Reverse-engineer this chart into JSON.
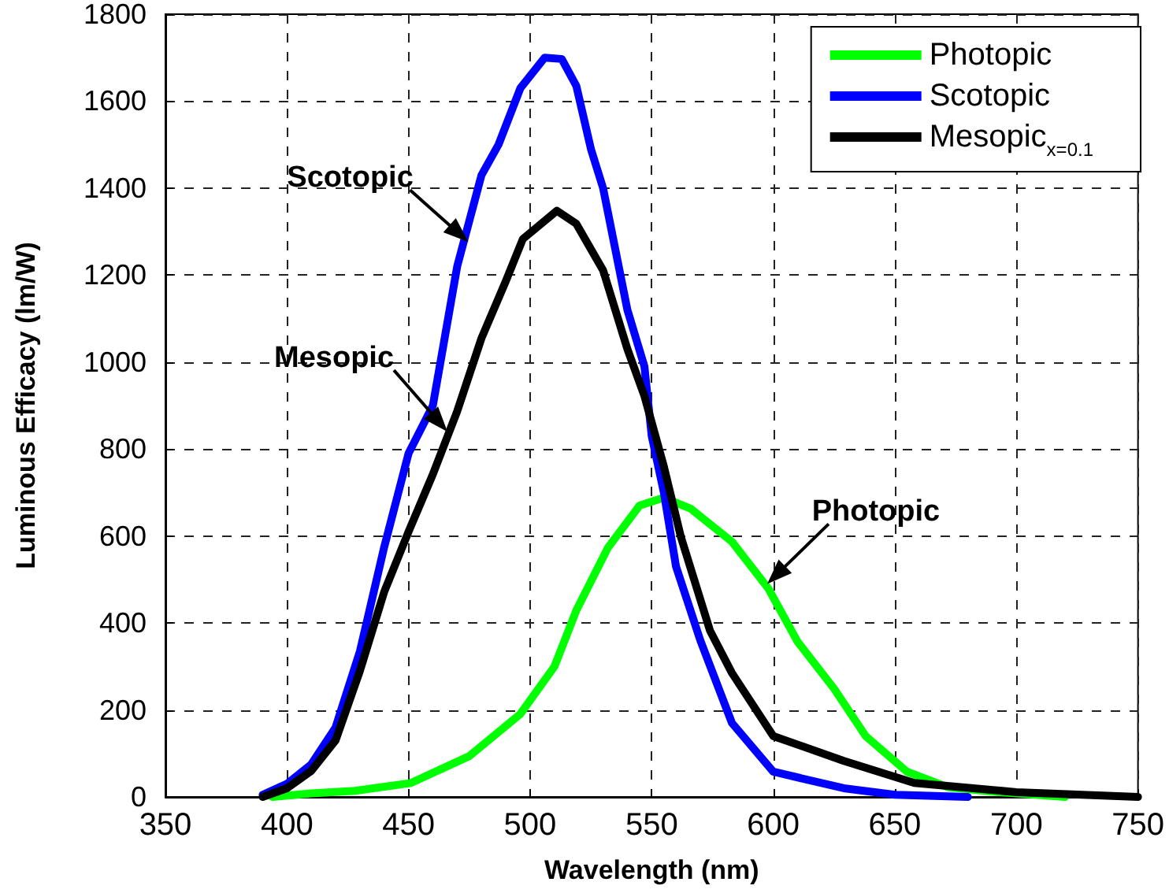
{
  "chart_data": {
    "type": "line",
    "xlabel": "Wavelength (nm)",
    "ylabel": "Luminous Efficacy (lm/W)",
    "xlim": [
      350,
      750
    ],
    "xticks": [
      350,
      400,
      450,
      500,
      550,
      600,
      650,
      700,
      750
    ],
    "ylim": [
      0,
      1800
    ],
    "yticks": [
      0,
      200,
      400,
      600,
      800,
      1000,
      1200,
      1400,
      1600,
      1800
    ],
    "grid": true,
    "legend": "top right",
    "marker": "none",
    "series": [
      {
        "name": "Photopic",
        "color": "#00ff00",
        "x": [
          394,
          410,
          428,
          451,
          475,
          496,
          510,
          519,
          532,
          545,
          555,
          566,
          583,
          598,
          610,
          625,
          638,
          655,
          672,
          693,
          720
        ],
        "values": [
          0,
          8,
          14,
          32,
          94,
          191,
          300,
          429,
          573,
          670,
          688,
          663,
          587,
          479,
          357,
          249,
          140,
          58,
          22,
          11,
          0
        ]
      },
      {
        "name": "Scotopic",
        "color": "#0000ff",
        "x": [
          390,
          400,
          410,
          420,
          430,
          440,
          450,
          460,
          465,
          470,
          480,
          487,
          496,
          506,
          513,
          519,
          525,
          530,
          540,
          547,
          550,
          555,
          560,
          570,
          583,
          600,
          629,
          650,
          680
        ],
        "values": [
          5,
          30,
          75,
          160,
          335,
          575,
          790,
          900,
          1060,
          1220,
          1430,
          1500,
          1630,
          1700,
          1697,
          1635,
          1490,
          1400,
          1120,
          990,
          830,
          700,
          530,
          360,
          170,
          58,
          20,
          5,
          0
        ]
      },
      {
        "name": "Mesopic$_{x=0.1}$",
        "color": "#000000",
        "x": [
          390,
          400,
          410,
          420,
          430,
          440,
          450,
          460,
          470,
          480,
          490,
          497,
          511,
          519,
          530,
          540,
          547,
          555,
          562,
          574,
          583,
          600,
          629,
          658,
          700,
          750
        ],
        "values": [
          0,
          20,
          60,
          130,
          290,
          472,
          610,
          742,
          887,
          1055,
          1186,
          1283,
          1348,
          1318,
          1211,
          1030,
          922,
          760,
          598,
          382,
          285,
          140,
          83,
          32,
          11,
          0
        ]
      }
    ],
    "annotations": [
      {
        "text": "Scotopic",
        "x": 474.6,
        "y": 1276
      },
      {
        "text": "Mesopic",
        "x": 466,
        "y": 840
      },
      {
        "text": "Photopic",
        "x": 597.5,
        "y": 490
      }
    ]
  }
}
